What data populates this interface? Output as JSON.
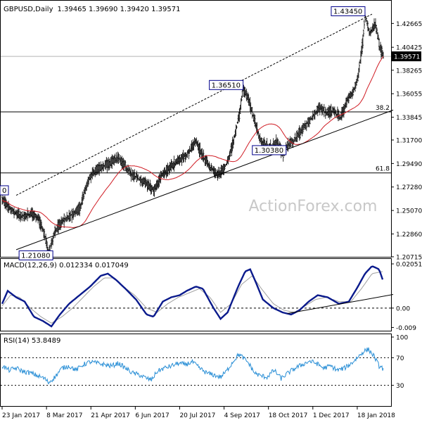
{
  "header": {
    "symbol": "GBPUSD,Daily",
    "ohlc": "1.39465 1.39690 1.39420 1.39571"
  },
  "watermark": "ActionForex.com",
  "colors": {
    "candle": "#000000",
    "ma": "#d01c24",
    "macd": "#0a1a8c",
    "signal": "#a0a0a0",
    "rsi": "#2a8fd6",
    "grid": "#000000",
    "watermark": "#c8c8c8"
  },
  "chart_data": [
    {
      "type": "candlestick",
      "title": "GBPUSD,Daily",
      "ylim": [
        1.2071,
        1.4454
      ],
      "y_ticks": [
        {
          "label": "1.42665",
          "value": 1.42665
        },
        {
          "label": "1.40425",
          "value": 1.40425
        },
        {
          "label": "1.38265",
          "value": 1.38265
        },
        {
          "label": "1.36055",
          "value": 1.36055
        },
        {
          "label": "1.33845",
          "value": 1.33845
        },
        {
          "label": "1.31700",
          "value": 1.317
        },
        {
          "label": "1.29490",
          "value": 1.2949
        },
        {
          "label": "1.27280",
          "value": 1.2728
        },
        {
          "label": "1.25070",
          "value": 1.2507
        },
        {
          "label": "1.22860",
          "value": 1.2286
        },
        {
          "label": "1.20715",
          "value": 1.20715
        }
      ],
      "current_price": {
        "label": "1.39571",
        "value": 1.39571
      },
      "fib_levels": [
        {
          "label": "38.2",
          "value": 1.34345
        },
        {
          "label": "61.8",
          "value": 1.28605
        }
      ],
      "annotations": [
        {
          "label": "1.43450",
          "bar": 515,
          "value": 1.4345
        },
        {
          "label": "1.36510",
          "bar": 342,
          "value": 1.3651
        },
        {
          "label": "1.30380",
          "bar": 399,
          "value": 1.3038
        },
        {
          "label": "1.21080",
          "bar": 66,
          "value": 1.2108
        },
        {
          "label": "0",
          "bar": 6,
          "value": 1.27
        }
      ],
      "anchors": [
        [
          0,
          1.262
        ],
        [
          10,
          1.252
        ],
        [
          20,
          1.248
        ],
        [
          30,
          1.245
        ],
        [
          42,
          1.248
        ],
        [
          52,
          1.243
        ],
        [
          60,
          1.228
        ],
        [
          66,
          1.2108
        ],
        [
          75,
          1.231
        ],
        [
          85,
          1.24
        ],
        [
          95,
          1.245
        ],
        [
          110,
          1.253
        ],
        [
          118,
          1.27
        ],
        [
          125,
          1.283
        ],
        [
          135,
          1.29
        ],
        [
          150,
          1.294
        ],
        [
          165,
          1.3
        ],
        [
          175,
          1.292
        ],
        [
          185,
          1.284
        ],
        [
          195,
          1.28
        ],
        [
          205,
          1.276
        ],
        [
          215,
          1.269
        ],
        [
          225,
          1.282
        ],
        [
          235,
          1.29
        ],
        [
          245,
          1.295
        ],
        [
          255,
          1.3
        ],
        [
          265,
          1.305
        ],
        [
          275,
          1.316
        ],
        [
          285,
          1.302
        ],
        [
          295,
          1.292
        ],
        [
          305,
          1.284
        ],
        [
          315,
          1.29
        ],
        [
          322,
          1.3
        ],
        [
          330,
          1.32
        ],
        [
          338,
          1.345
        ],
        [
          342,
          1.3651
        ],
        [
          350,
          1.355
        ],
        [
          358,
          1.336
        ],
        [
          366,
          1.318
        ],
        [
          374,
          1.312
        ],
        [
          382,
          1.31
        ],
        [
          390,
          1.315
        ],
        [
          399,
          1.3038
        ],
        [
          405,
          1.312
        ],
        [
          412,
          1.315
        ],
        [
          420,
          1.322
        ],
        [
          430,
          1.33
        ],
        [
          440,
          1.338
        ],
        [
          450,
          1.348
        ],
        [
          460,
          1.342
        ],
        [
          470,
          1.345
        ],
        [
          480,
          1.338
        ],
        [
          490,
          1.355
        ],
        [
          498,
          1.362
        ],
        [
          505,
          1.375
        ],
        [
          512,
          1.41
        ],
        [
          515,
          1.4345
        ],
        [
          522,
          1.418
        ],
        [
          530,
          1.426
        ],
        [
          536,
          1.405
        ],
        [
          541,
          1.3957
        ]
      ],
      "trend_lines": [
        {
          "name": "support",
          "from": [
            20,
            1.2138
          ],
          "to": [
            555,
            1.3452
          ]
        },
        {
          "name": "channel",
          "from": [
            20,
            1.265
          ],
          "to": [
            525,
            1.4354
          ]
        }
      ]
    },
    {
      "type": "line",
      "title": "MACD(12,26,9) 0.012334 0.017049",
      "ylim": [
        -0.0105,
        0.0215
      ],
      "y_ticks": [
        {
          "label": "0.02051",
          "value": 0.02051
        },
        {
          "label": "0.00",
          "value": 0.0
        },
        {
          "label": "-0.009",
          "value": -0.009
        }
      ],
      "zero_value": 0.0,
      "series": [
        {
          "name": "MACD",
          "anchors": [
            [
              0,
              0.002
            ],
            [
              8,
              0.008
            ],
            [
              20,
              0.005
            ],
            [
              32,
              0.003
            ],
            [
              45,
              -0.004
            ],
            [
              58,
              -0.006
            ],
            [
              70,
              -0.0085
            ],
            [
              82,
              -0.003
            ],
            [
              95,
              0.002
            ],
            [
              110,
              0.006
            ],
            [
              125,
              0.01
            ],
            [
              140,
              0.015
            ],
            [
              150,
              0.016
            ],
            [
              162,
              0.013
            ],
            [
              175,
              0.009
            ],
            [
              190,
              0.004
            ],
            [
              205,
              -0.003
            ],
            [
              215,
              -0.004
            ],
            [
              228,
              0.003
            ],
            [
              240,
              0.005
            ],
            [
              252,
              0.006
            ],
            [
              262,
              0.008
            ],
            [
              275,
              0.01
            ],
            [
              285,
              0.009
            ],
            [
              300,
              0.0
            ],
            [
              310,
              -0.005
            ],
            [
              320,
              -0.002
            ],
            [
              335,
              0.01
            ],
            [
              345,
              0.017
            ],
            [
              352,
              0.018
            ],
            [
              360,
              0.012
            ],
            [
              370,
              0.004
            ],
            [
              385,
              0.0
            ],
            [
              398,
              -0.002
            ],
            [
              410,
              -0.003
            ],
            [
              422,
              -0.001
            ],
            [
              435,
              0.003
            ],
            [
              448,
              0.006
            ],
            [
              462,
              0.005
            ],
            [
              478,
              0.002
            ],
            [
              492,
              0.003
            ],
            [
              505,
              0.01
            ],
            [
              515,
              0.016
            ],
            [
              525,
              0.0195
            ],
            [
              535,
              0.018
            ],
            [
              541,
              0.0123
            ]
          ]
        },
        {
          "name": "Signal",
          "anchors": [
            [
              0,
              0.001
            ],
            [
              12,
              0.006
            ],
            [
              25,
              0.005
            ],
            [
              40,
              0.0
            ],
            [
              55,
              -0.004
            ],
            [
              70,
              -0.007
            ],
            [
              85,
              -0.004
            ],
            [
              100,
              0.0
            ],
            [
              115,
              0.005
            ],
            [
              130,
              0.01
            ],
            [
              145,
              0.014
            ],
            [
              158,
              0.014
            ],
            [
              172,
              0.01
            ],
            [
              188,
              0.006
            ],
            [
              205,
              0.0
            ],
            [
              220,
              -0.002
            ],
            [
              235,
              0.002
            ],
            [
              250,
              0.005
            ],
            [
              265,
              0.007
            ],
            [
              280,
              0.009
            ],
            [
              295,
              0.005
            ],
            [
              310,
              -0.002
            ],
            [
              325,
              0.002
            ],
            [
              340,
              0.011
            ],
            [
              355,
              0.015
            ],
            [
              368,
              0.009
            ],
            [
              385,
              0.002
            ],
            [
              400,
              -0.001
            ],
            [
              415,
              -0.002
            ],
            [
              430,
              0.001
            ],
            [
              445,
              0.004
            ],
            [
              460,
              0.005
            ],
            [
              478,
              0.003
            ],
            [
              495,
              0.003
            ],
            [
              510,
              0.009
            ],
            [
              525,
              0.016
            ],
            [
              541,
              0.017
            ]
          ]
        }
      ],
      "trend_line": {
        "from": [
          405,
          -0.0025
        ],
        "to": [
          555,
          0.0063
        ]
      }
    },
    {
      "type": "line",
      "title": "RSI(14) 53.8489",
      "ylim": [
        0,
        100
      ],
      "y_ticks": [
        {
          "label": "100",
          "value": 100
        },
        {
          "label": "70",
          "value": 70
        },
        {
          "label": "30",
          "value": 30
        },
        {
          "label": "0",
          "value": 0
        }
      ],
      "levels": [
        70,
        30
      ],
      "anchors": [
        [
          0,
          58
        ],
        [
          10,
          52
        ],
        [
          20,
          55
        ],
        [
          30,
          50
        ],
        [
          40,
          48
        ],
        [
          50,
          44
        ],
        [
          60,
          40
        ],
        [
          66,
          34
        ],
        [
          75,
          42
        ],
        [
          85,
          55
        ],
        [
          95,
          58
        ],
        [
          105,
          52
        ],
        [
          115,
          60
        ],
        [
          125,
          64
        ],
        [
          135,
          62
        ],
        [
          145,
          60
        ],
        [
          155,
          58
        ],
        [
          165,
          62
        ],
        [
          175,
          55
        ],
        [
          185,
          48
        ],
        [
          195,
          45
        ],
        [
          205,
          40
        ],
        [
          212,
          38
        ],
        [
          220,
          50
        ],
        [
          230,
          55
        ],
        [
          240,
          58
        ],
        [
          250,
          62
        ],
        [
          260,
          60
        ],
        [
          270,
          64
        ],
        [
          280,
          55
        ],
        [
          290,
          48
        ],
        [
          300,
          45
        ],
        [
          310,
          42
        ],
        [
          318,
          50
        ],
        [
          328,
          65
        ],
        [
          336,
          75
        ],
        [
          342,
          70
        ],
        [
          350,
          62
        ],
        [
          358,
          48
        ],
        [
          366,
          44
        ],
        [
          376,
          42
        ],
        [
          386,
          52
        ],
        [
          396,
          40
        ],
        [
          406,
          48
        ],
        [
          416,
          55
        ],
        [
          426,
          60
        ],
        [
          436,
          65
        ],
        [
          446,
          62
        ],
        [
          456,
          55
        ],
        [
          466,
          58
        ],
        [
          476,
          52
        ],
        [
          486,
          55
        ],
        [
          496,
          62
        ],
        [
          506,
          72
        ],
        [
          514,
          80
        ],
        [
          520,
          82
        ],
        [
          528,
          72
        ],
        [
          535,
          58
        ],
        [
          541,
          54
        ]
      ]
    }
  ],
  "x_axis": {
    "labels": [
      {
        "label": "23 Jan 2017",
        "bar": 0
      },
      {
        "label": "8 Mar 2017",
        "bar": 63
      },
      {
        "label": "21 Apr 2017",
        "bar": 126
      },
      {
        "label": "6 Jun 2017",
        "bar": 189
      },
      {
        "label": "20 Jul 2017",
        "bar": 252
      },
      {
        "label": "4 Sep 2017",
        "bar": 315
      },
      {
        "label": "18 Oct 2017",
        "bar": 378
      },
      {
        "label": "1 Dec 2017",
        "bar": 441
      },
      {
        "label": "18 Jan 2018",
        "bar": 504
      }
    ],
    "n_bars": 542
  }
}
